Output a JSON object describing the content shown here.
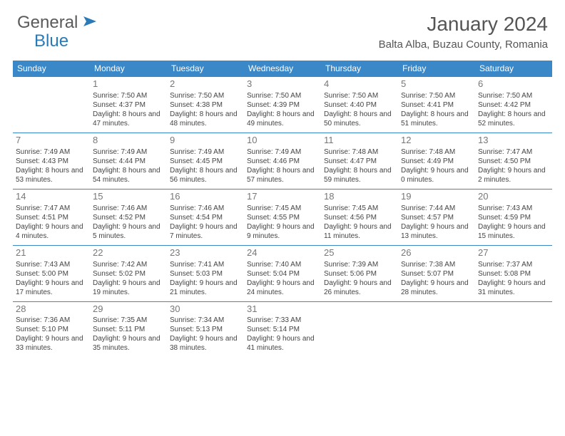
{
  "logo": {
    "general": "General",
    "blue": "Blue"
  },
  "title": "January 2024",
  "location": "Balta Alba, Buzau County, Romania",
  "header_bg": "#3a88c8",
  "border_color": "#3a88c8",
  "days_of_week": [
    "Sunday",
    "Monday",
    "Tuesday",
    "Wednesday",
    "Thursday",
    "Friday",
    "Saturday"
  ],
  "first_day_index": 1,
  "days": [
    {
      "n": "1",
      "sr": "7:50 AM",
      "ss": "4:37 PM",
      "dl": "8 hours and 47 minutes."
    },
    {
      "n": "2",
      "sr": "7:50 AM",
      "ss": "4:38 PM",
      "dl": "8 hours and 48 minutes."
    },
    {
      "n": "3",
      "sr": "7:50 AM",
      "ss": "4:39 PM",
      "dl": "8 hours and 49 minutes."
    },
    {
      "n": "4",
      "sr": "7:50 AM",
      "ss": "4:40 PM",
      "dl": "8 hours and 50 minutes."
    },
    {
      "n": "5",
      "sr": "7:50 AM",
      "ss": "4:41 PM",
      "dl": "8 hours and 51 minutes."
    },
    {
      "n": "6",
      "sr": "7:50 AM",
      "ss": "4:42 PM",
      "dl": "8 hours and 52 minutes."
    },
    {
      "n": "7",
      "sr": "7:49 AM",
      "ss": "4:43 PM",
      "dl": "8 hours and 53 minutes."
    },
    {
      "n": "8",
      "sr": "7:49 AM",
      "ss": "4:44 PM",
      "dl": "8 hours and 54 minutes."
    },
    {
      "n": "9",
      "sr": "7:49 AM",
      "ss": "4:45 PM",
      "dl": "8 hours and 56 minutes."
    },
    {
      "n": "10",
      "sr": "7:49 AM",
      "ss": "4:46 PM",
      "dl": "8 hours and 57 minutes."
    },
    {
      "n": "11",
      "sr": "7:48 AM",
      "ss": "4:47 PM",
      "dl": "8 hours and 59 minutes."
    },
    {
      "n": "12",
      "sr": "7:48 AM",
      "ss": "4:49 PM",
      "dl": "9 hours and 0 minutes."
    },
    {
      "n": "13",
      "sr": "7:47 AM",
      "ss": "4:50 PM",
      "dl": "9 hours and 2 minutes."
    },
    {
      "n": "14",
      "sr": "7:47 AM",
      "ss": "4:51 PM",
      "dl": "9 hours and 4 minutes."
    },
    {
      "n": "15",
      "sr": "7:46 AM",
      "ss": "4:52 PM",
      "dl": "9 hours and 5 minutes."
    },
    {
      "n": "16",
      "sr": "7:46 AM",
      "ss": "4:54 PM",
      "dl": "9 hours and 7 minutes."
    },
    {
      "n": "17",
      "sr": "7:45 AM",
      "ss": "4:55 PM",
      "dl": "9 hours and 9 minutes."
    },
    {
      "n": "18",
      "sr": "7:45 AM",
      "ss": "4:56 PM",
      "dl": "9 hours and 11 minutes."
    },
    {
      "n": "19",
      "sr": "7:44 AM",
      "ss": "4:57 PM",
      "dl": "9 hours and 13 minutes."
    },
    {
      "n": "20",
      "sr": "7:43 AM",
      "ss": "4:59 PM",
      "dl": "9 hours and 15 minutes."
    },
    {
      "n": "21",
      "sr": "7:43 AM",
      "ss": "5:00 PM",
      "dl": "9 hours and 17 minutes."
    },
    {
      "n": "22",
      "sr": "7:42 AM",
      "ss": "5:02 PM",
      "dl": "9 hours and 19 minutes."
    },
    {
      "n": "23",
      "sr": "7:41 AM",
      "ss": "5:03 PM",
      "dl": "9 hours and 21 minutes."
    },
    {
      "n": "24",
      "sr": "7:40 AM",
      "ss": "5:04 PM",
      "dl": "9 hours and 24 minutes."
    },
    {
      "n": "25",
      "sr": "7:39 AM",
      "ss": "5:06 PM",
      "dl": "9 hours and 26 minutes."
    },
    {
      "n": "26",
      "sr": "7:38 AM",
      "ss": "5:07 PM",
      "dl": "9 hours and 28 minutes."
    },
    {
      "n": "27",
      "sr": "7:37 AM",
      "ss": "5:08 PM",
      "dl": "9 hours and 31 minutes."
    },
    {
      "n": "28",
      "sr": "7:36 AM",
      "ss": "5:10 PM",
      "dl": "9 hours and 33 minutes."
    },
    {
      "n": "29",
      "sr": "7:35 AM",
      "ss": "5:11 PM",
      "dl": "9 hours and 35 minutes."
    },
    {
      "n": "30",
      "sr": "7:34 AM",
      "ss": "5:13 PM",
      "dl": "9 hours and 38 minutes."
    },
    {
      "n": "31",
      "sr": "7:33 AM",
      "ss": "5:14 PM",
      "dl": "9 hours and 41 minutes."
    }
  ],
  "labels": {
    "sunrise": "Sunrise:",
    "sunset": "Sunset:",
    "daylight": "Daylight:"
  }
}
